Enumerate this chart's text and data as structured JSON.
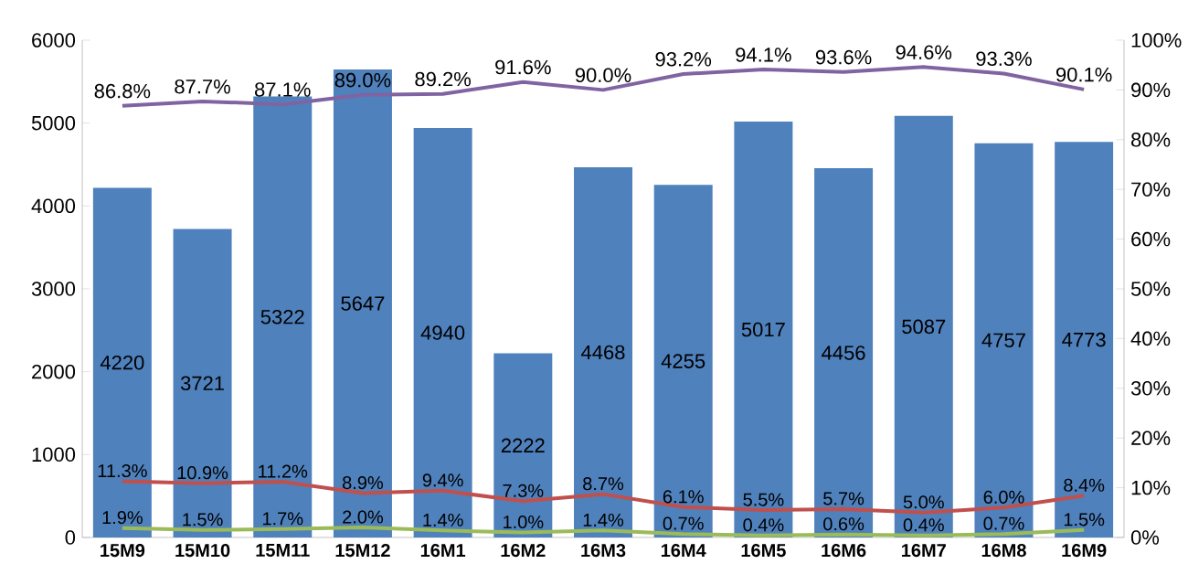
{
  "chart_data": {
    "type": "bar",
    "categories": [
      "15M9",
      "15M10",
      "15M11",
      "15M12",
      "16M1",
      "16M2",
      "16M3",
      "16M4",
      "16M5",
      "16M6",
      "16M7",
      "16M8",
      "16M9"
    ],
    "series": [
      {
        "color": "#4f81bd",
        "values": [
          4220,
          3721,
          5322,
          5647,
          4940,
          2222,
          4468,
          4255,
          5017,
          4456,
          5087,
          4757,
          4773
        ],
        "value_labels": [
          "4220",
          "3721",
          "5322",
          "5647",
          "4940",
          "2222",
          "4468",
          "4255",
          "5017",
          "4456",
          "5087",
          "4757",
          "4773"
        ]
      },
      {
        "type": "line",
        "axis": "y2",
        "color": "#8064a2",
        "values": [
          86.8,
          87.7,
          87.1,
          89.0,
          89.2,
          91.6,
          90.0,
          93.2,
          94.1,
          93.6,
          94.6,
          93.3,
          90.1
        ],
        "value_labels": [
          "86.8%",
          "87.7%",
          "87.1%",
          "89.0%",
          "89.2%",
          "91.6%",
          "90.0%",
          "93.2%",
          "94.1%",
          "93.6%",
          "94.6%",
          "93.3%",
          "90.1%"
        ]
      },
      {
        "type": "line",
        "axis": "y2",
        "color": "#c0504d",
        "values": [
          11.3,
          10.9,
          11.2,
          8.9,
          9.4,
          7.3,
          8.7,
          6.1,
          5.5,
          5.7,
          5.0,
          6.0,
          8.4
        ],
        "value_labels": [
          "11.3%",
          "10.9%",
          "11.2%",
          "8.9%",
          "9.4%",
          "7.3%",
          "8.7%",
          "6.1%",
          "5.5%",
          "5.7%",
          "5.0%",
          "6.0%",
          "8.4%"
        ]
      },
      {
        "type": "line",
        "axis": "y2",
        "color": "#9bbb59",
        "values": [
          1.9,
          1.5,
          1.7,
          2.0,
          1.4,
          1.0,
          1.4,
          0.7,
          0.4,
          0.6,
          0.4,
          0.7,
          1.5
        ],
        "value_labels": [
          "1.9%",
          "1.5%",
          "1.7%",
          "2.0%",
          "1.4%",
          "1.0%",
          "1.4%",
          "0.7%",
          "0.4%",
          "0.6%",
          "0.4%",
          "0.7%",
          "1.5%"
        ]
      }
    ],
    "ylim": [
      0,
      6000
    ],
    "yticks": [
      0,
      1000,
      2000,
      3000,
      4000,
      5000,
      6000
    ],
    "y2lim": [
      0,
      100
    ],
    "y2ticks": [
      {
        "value": 0,
        "label": "0%"
      },
      {
        "value": 10,
        "label": "10%"
      },
      {
        "value": 20,
        "label": "20%"
      },
      {
        "value": 30,
        "label": "30%"
      },
      {
        "value": 40,
        "label": "40%"
      },
      {
        "value": 50,
        "label": "50%"
      },
      {
        "value": 60,
        "label": "60%"
      },
      {
        "value": 70,
        "label": "70%"
      },
      {
        "value": 80,
        "label": "80%"
      },
      {
        "value": 90,
        "label": "90%"
      },
      {
        "value": 100,
        "label": "100%"
      }
    ],
    "grid": false,
    "legend": false,
    "marker": "none",
    "line_style": "solid"
  }
}
